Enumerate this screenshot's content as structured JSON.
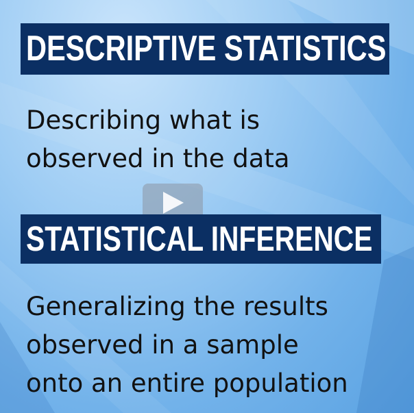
{
  "colors": {
    "banner_background": "#0b2f63",
    "banner_text": "#ffffff",
    "body_text": "#111111",
    "background": "#8fc4f0"
  },
  "sections": [
    {
      "heading": "DESCRIPTIVE STATISTICS",
      "lines": [
        "Describing what is",
        "observed in the data"
      ]
    },
    {
      "heading": "STATISTICAL INFERENCE",
      "lines": [
        "Generalizing the results",
        "observed in a sample",
        "onto an entire population"
      ]
    }
  ],
  "video": {
    "play_icon": "play-icon"
  }
}
